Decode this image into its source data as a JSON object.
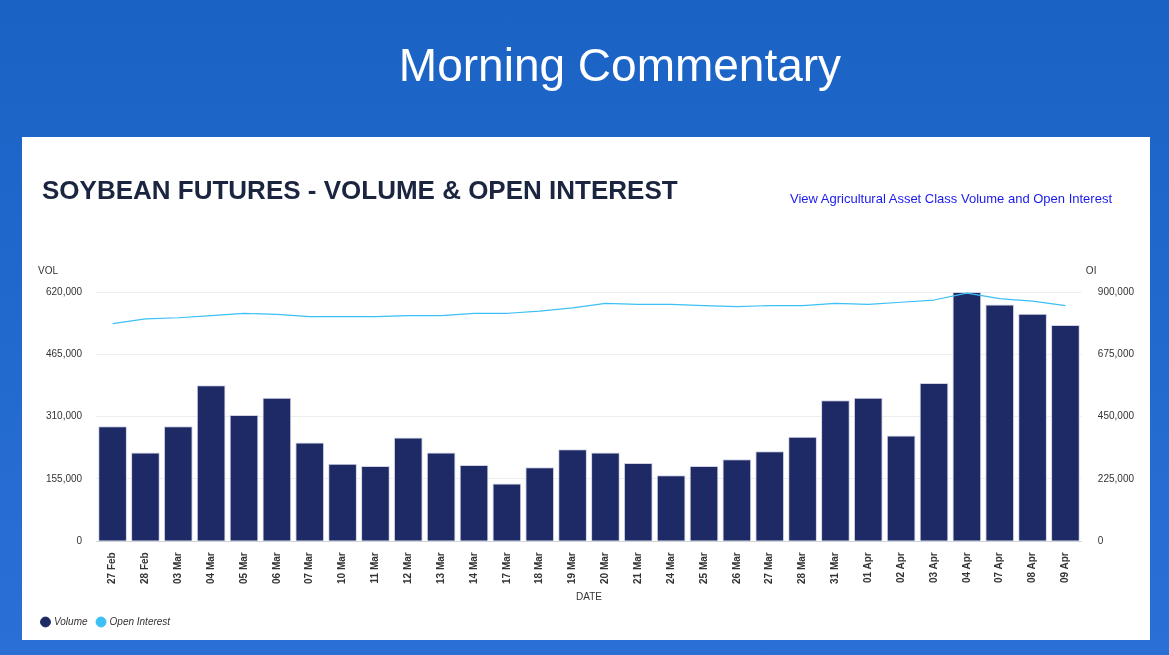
{
  "chart_data": {
    "type": "bar",
    "title": "SOYBEAN FUTURES - VOLUME & OPEN INTEREST",
    "annotations": [
      "Morning Commentary",
      "View Agricultural Asset Class Volume and Open Interest"
    ],
    "xlabel": "DATE",
    "ylabel": "VOL",
    "y2label": "OI",
    "categories": [
      "27 Feb",
      "28 Feb",
      "03 Mar",
      "04 Mar",
      "05 Mar",
      "06 Mar",
      "07 Mar",
      "10 Mar",
      "11 Mar",
      "12 Mar",
      "13 Mar",
      "14 Mar",
      "17 Mar",
      "18 Mar",
      "19 Mar",
      "20 Mar",
      "21 Mar",
      "24 Mar",
      "25 Mar",
      "26 Mar",
      "27 Mar",
      "28 Mar",
      "31 Mar",
      "01 Apr",
      "02 Apr",
      "03 Apr",
      "04 Apr",
      "07 Apr",
      "08 Apr",
      "09 Apr"
    ],
    "series": [
      {
        "name": "Volume",
        "color": "#1e2a66",
        "values": [
          286000,
          221000,
          286000,
          388000,
          314000,
          357000,
          246000,
          193000,
          187000,
          258000,
          221000,
          190000,
          144000,
          184000,
          229000,
          221000,
          195000,
          164000,
          187000,
          204000,
          224000,
          260000,
          351000,
          357000,
          263000,
          394000,
          620000,
          589000,
          566000,
          538000
        ]
      },
      {
        "name": "Open Interest",
        "type": "line",
        "axis": "y2",
        "color": "#3cc0f5",
        "values": [
          786000,
          803000,
          807000,
          815000,
          823000,
          819000,
          811000,
          811000,
          811000,
          815000,
          815000,
          823000,
          823000,
          831000,
          843000,
          859000,
          855000,
          855000,
          851000,
          847000,
          851000,
          851000,
          859000,
          855000,
          863000,
          871000,
          896000,
          876000,
          867000,
          851000
        ]
      }
    ],
    "ylim": [
      0,
      620000
    ],
    "yticks": [
      0,
      {
        "value": 155000,
        "label": "155,000"
      },
      {
        "value": 310000,
        "label": "310,000"
      },
      {
        "value": 465000,
        "label": "465,000"
      },
      {
        "value": 620000,
        "label": "620,000"
      }
    ],
    "y2lim": [
      0,
      900000
    ],
    "y2ticks": [
      0,
      {
        "value": 225000,
        "label": "225,000"
      },
      {
        "value": 450000,
        "label": "450,000"
      },
      {
        "value": 675000,
        "label": "675,000"
      },
      {
        "value": 900000,
        "label": "900,000"
      }
    ],
    "grid": "y",
    "legend": "bottom left",
    "marker": "none"
  }
}
